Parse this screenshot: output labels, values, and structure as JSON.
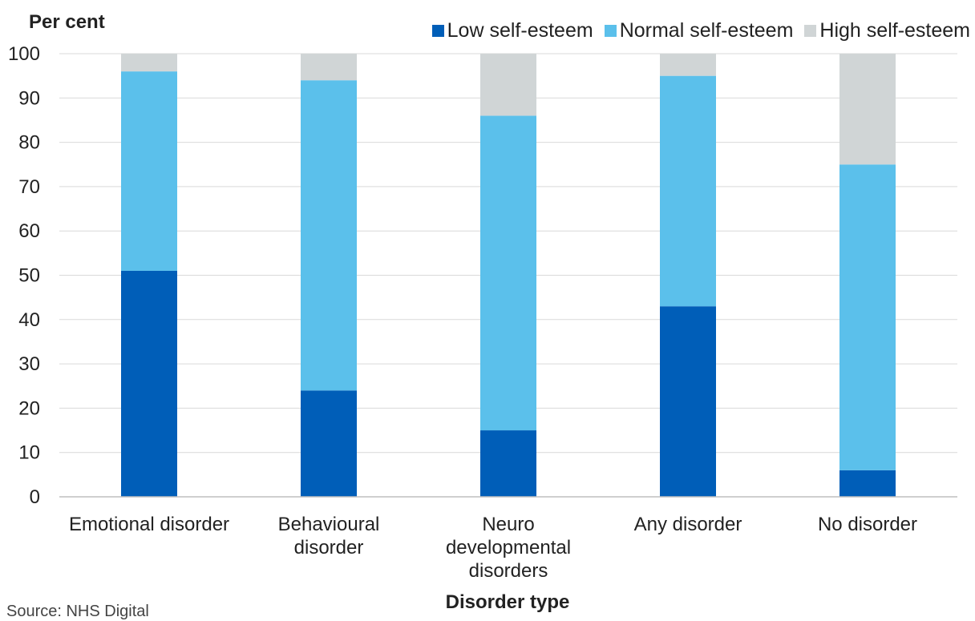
{
  "chart_data": {
    "type": "bar",
    "stacked": true,
    "ylabel": "Per cent",
    "xlabel": "Disorder type",
    "ylim": [
      0,
      100
    ],
    "yticks": [
      0,
      10,
      20,
      30,
      40,
      50,
      60,
      70,
      80,
      90,
      100
    ],
    "grid": true,
    "legend_position": "top-right",
    "categories": [
      "Emotional disorder",
      "Behavioural disorder",
      "Neuro developmental disorders",
      "Any disorder",
      "No disorder"
    ],
    "category_lines": [
      [
        "Emotional disorder"
      ],
      [
        "Behavioural",
        "disorder"
      ],
      [
        "Neuro",
        "developmental",
        "disorders"
      ],
      [
        "Any disorder"
      ],
      [
        "No disorder"
      ]
    ],
    "series": [
      {
        "name": "Low self-esteem",
        "color": "#005EB8",
        "values": [
          51,
          24,
          15,
          43,
          6
        ]
      },
      {
        "name": "Normal self-esteem",
        "color": "#5BC0EB",
        "values": [
          45,
          70,
          71,
          52,
          69
        ]
      },
      {
        "name": "High self-esteem",
        "color": "#D0D5D6",
        "values": [
          4,
          6,
          14,
          5,
          25
        ]
      }
    ]
  },
  "source": "Source: NHS Digital"
}
